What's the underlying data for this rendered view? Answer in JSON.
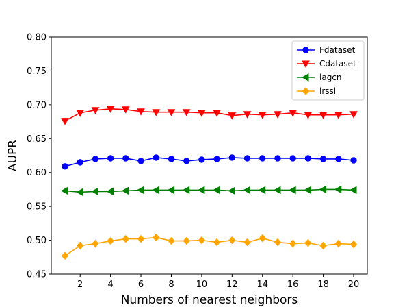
{
  "chart_data": {
    "type": "line",
    "title": "",
    "xlabel": "Numbers of nearest neighbors",
    "ylabel": "AUPR",
    "xlim": [
      0.1,
      20.9
    ],
    "ylim": [
      0.45,
      0.8
    ],
    "xticks": [
      2,
      4,
      6,
      8,
      10,
      12,
      14,
      16,
      18,
      20
    ],
    "yticks": [
      0.45,
      0.5,
      0.55,
      0.6,
      0.65,
      0.7,
      0.75,
      0.8
    ],
    "grid": false,
    "legend_position": "top-right",
    "x": [
      1,
      2,
      3,
      4,
      5,
      6,
      7,
      8,
      9,
      10,
      11,
      12,
      13,
      14,
      15,
      16,
      17,
      18,
      19,
      20
    ],
    "series": [
      {
        "name": "Fdataset",
        "color": "#0000ff",
        "marker": "circle",
        "values": [
          0.609,
          0.615,
          0.62,
          0.621,
          0.621,
          0.617,
          0.622,
          0.62,
          0.617,
          0.619,
          0.62,
          0.622,
          0.621,
          0.621,
          0.621,
          0.621,
          0.621,
          0.62,
          0.62,
          0.618
        ]
      },
      {
        "name": "Cdataset",
        "color": "#ff0000",
        "marker": "triangle-down",
        "values": [
          0.676,
          0.688,
          0.692,
          0.694,
          0.693,
          0.69,
          0.689,
          0.689,
          0.689,
          0.688,
          0.688,
          0.684,
          0.686,
          0.685,
          0.686,
          0.688,
          0.685,
          0.685,
          0.685,
          0.686
        ]
      },
      {
        "name": "lagcn",
        "color": "#008000",
        "marker": "triangle-left",
        "values": [
          0.573,
          0.571,
          0.572,
          0.572,
          0.573,
          0.574,
          0.574,
          0.574,
          0.574,
          0.574,
          0.574,
          0.573,
          0.574,
          0.574,
          0.574,
          0.574,
          0.574,
          0.575,
          0.575,
          0.574
        ]
      },
      {
        "name": "lrssl",
        "color": "#ffa500",
        "marker": "diamond",
        "values": [
          0.477,
          0.492,
          0.495,
          0.499,
          0.502,
          0.502,
          0.504,
          0.499,
          0.499,
          0.5,
          0.497,
          0.5,
          0.497,
          0.503,
          0.497,
          0.495,
          0.496,
          0.492,
          0.495,
          0.494
        ]
      }
    ]
  }
}
